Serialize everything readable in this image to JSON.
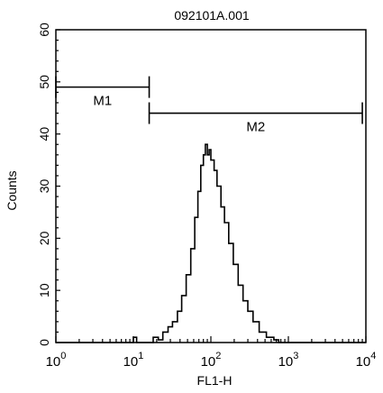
{
  "chart_data": {
    "type": "histogram",
    "title": "092101A.001",
    "xlabel": "FL1-H",
    "ylabel": "Counts",
    "x_scale": "log",
    "xlim": [
      1,
      10000
    ],
    "ylim": [
      0,
      60
    ],
    "x_ticks": [
      {
        "base": "10",
        "exp": "0",
        "value": 1
      },
      {
        "base": "10",
        "exp": "1",
        "value": 10
      },
      {
        "base": "10",
        "exp": "2",
        "value": 100
      },
      {
        "base": "10",
        "exp": "3",
        "value": 1000
      },
      {
        "base": "10",
        "exp": "4",
        "value": 10000
      }
    ],
    "y_ticks": [
      "0",
      "10",
      "20",
      "30",
      "40",
      "50",
      "60"
    ],
    "markers": [
      {
        "name": "M1",
        "x_start": 1,
        "x_end": 16,
        "y": 49
      },
      {
        "name": "M2",
        "x_start": 16,
        "x_end": 9000,
        "y": 44
      }
    ],
    "series": [
      {
        "color": "#000000",
        "points": [
          [
            1,
            0
          ],
          [
            9,
            0
          ],
          [
            10,
            1
          ],
          [
            11,
            0
          ],
          [
            15,
            0
          ],
          [
            18,
            1
          ],
          [
            21,
            0.5
          ],
          [
            24,
            2
          ],
          [
            28,
            3
          ],
          [
            32,
            4
          ],
          [
            37,
            6
          ],
          [
            42,
            9
          ],
          [
            48,
            13
          ],
          [
            55,
            18
          ],
          [
            62,
            24
          ],
          [
            68,
            29
          ],
          [
            74,
            34
          ],
          [
            80,
            36
          ],
          [
            85,
            38
          ],
          [
            90,
            36
          ],
          [
            95,
            37
          ],
          [
            100,
            35
          ],
          [
            110,
            33
          ],
          [
            120,
            30
          ],
          [
            135,
            26
          ],
          [
            150,
            23
          ],
          [
            170,
            19
          ],
          [
            195,
            15
          ],
          [
            225,
            11
          ],
          [
            260,
            8
          ],
          [
            300,
            6
          ],
          [
            350,
            4
          ],
          [
            420,
            2
          ],
          [
            520,
            1
          ],
          [
            650,
            0.5
          ],
          [
            750,
            0
          ],
          [
            10000,
            0
          ]
        ]
      }
    ]
  }
}
